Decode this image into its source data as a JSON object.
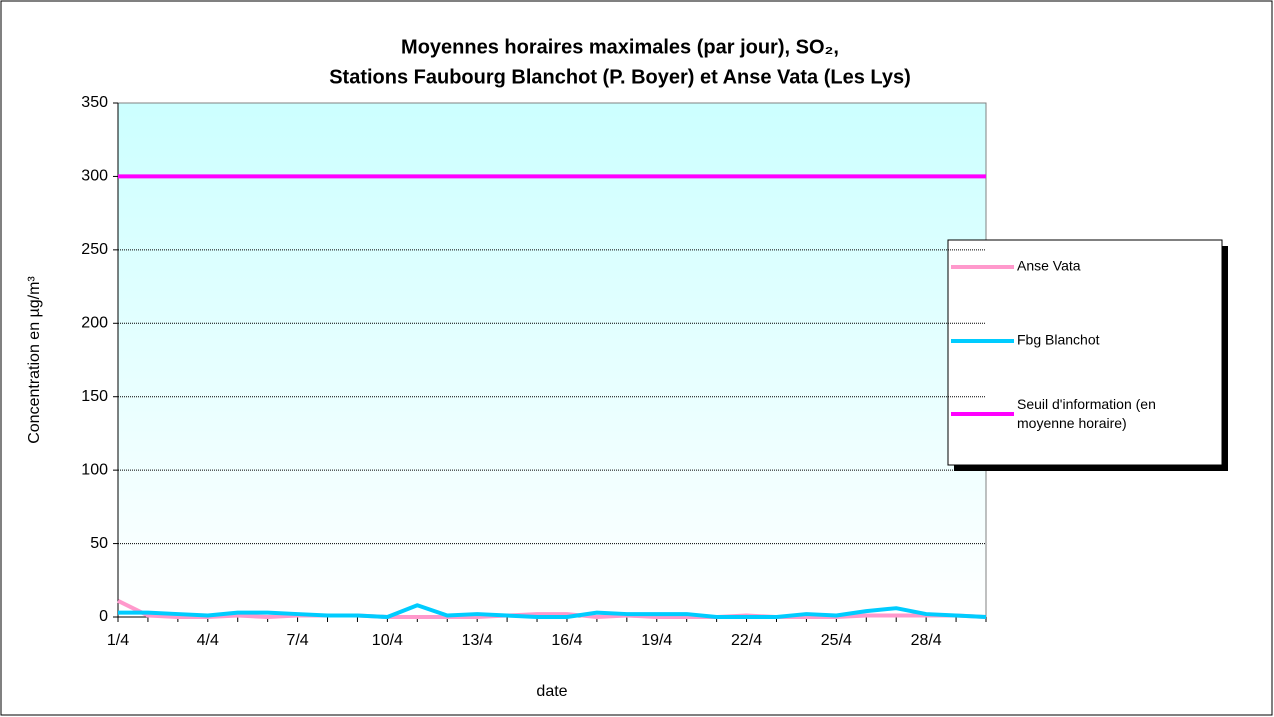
{
  "chart_data": {
    "type": "line",
    "title": [
      "Moyennes horaires maximales (par jour), SO₂,",
      "Stations Faubourg Blanchot (P. Boyer) et Anse Vata (Les Lys)"
    ],
    "x_label": "date",
    "y_label": "Concentration en µg/m³",
    "categories": [
      "1/4",
      null,
      null,
      "4/4",
      null,
      null,
      "7/4",
      null,
      null,
      "10/4",
      null,
      null,
      "13/4",
      null,
      null,
      "16/4",
      null,
      null,
      "19/4",
      null,
      null,
      "22/4",
      null,
      null,
      "25/4",
      null,
      null,
      "28/4",
      null,
      null
    ],
    "series": [
      {
        "name": "Anse Vata",
        "color": "#ff99cc",
        "values": [
          11,
          1,
          0,
          0,
          1,
          0,
          1,
          1,
          1,
          0,
          0,
          0,
          0,
          1,
          2,
          2,
          0,
          1,
          0,
          0,
          0,
          1,
          0,
          0,
          0,
          1,
          1,
          1,
          1,
          0
        ]
      },
      {
        "name": "Fbg Blanchot",
        "color": "#00ccff",
        "values": [
          3,
          3,
          2,
          1,
          3,
          3,
          2,
          1,
          1,
          0,
          8,
          1,
          2,
          1,
          0,
          0,
          3,
          2,
          2,
          2,
          0,
          0,
          0,
          2,
          1,
          4,
          6,
          2,
          1,
          0
        ]
      },
      {
        "name": "Seuil d'information (en moyenne horaire)",
        "color": "#ff00ff",
        "values": [
          300,
          300,
          300,
          300,
          300,
          300,
          300,
          300,
          300,
          300,
          300,
          300,
          300,
          300,
          300,
          300,
          300,
          300,
          300,
          300,
          300,
          300,
          300,
          300,
          300,
          300,
          300,
          300,
          300,
          300
        ]
      }
    ],
    "ylim": [
      0,
      350
    ],
    "yticks": [
      0,
      50,
      100,
      150,
      200,
      250,
      300,
      350
    ],
    "grid": true,
    "legend": "right"
  }
}
